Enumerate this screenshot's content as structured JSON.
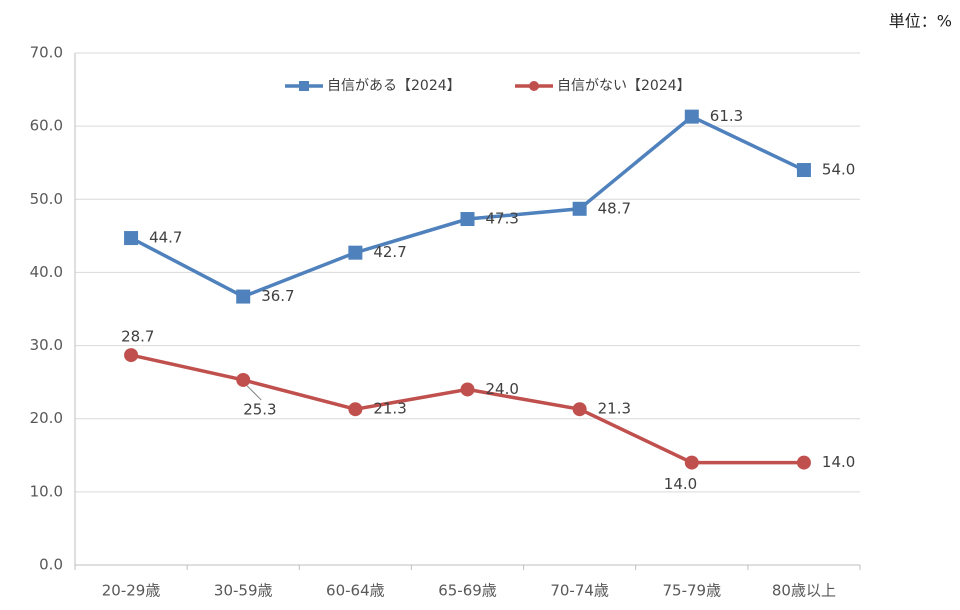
{
  "chart_data": {
    "type": "line",
    "unit": "単位：%",
    "categories": [
      "20-29歳",
      "30-59歳",
      "60-64歳",
      "65-69歳",
      "70-74歳",
      "75-79歳",
      "80歳以上"
    ],
    "series": [
      {
        "name": "自信がある【2024】",
        "color": "#4f81bd",
        "marker": "square",
        "values": [
          44.7,
          36.7,
          42.7,
          47.3,
          48.7,
          61.3,
          54.0
        ],
        "value_labels": [
          "44.7",
          "36.7",
          "42.7",
          "47.3",
          "48.7",
          "61.3",
          "54.0"
        ]
      },
      {
        "name": "自信がない【2024】",
        "color": "#c0504d",
        "marker": "circle",
        "values": [
          28.7,
          25.3,
          21.3,
          24.0,
          21.3,
          14.0,
          14.0
        ],
        "value_labels": [
          "28.7",
          "25.3",
          "21.3",
          "24.0",
          "21.3",
          "14.0",
          "14.0"
        ]
      }
    ],
    "ylim": [
      0,
      70
    ],
    "yticks": [
      {
        "value": 0,
        "label": "0.0"
      },
      {
        "value": 10,
        "label": "10.0"
      },
      {
        "value": 20,
        "label": "20.0"
      },
      {
        "value": 30,
        "label": "30.0"
      },
      {
        "value": 40,
        "label": "40.0"
      },
      {
        "value": 50,
        "label": "50.0"
      },
      {
        "value": 60,
        "label": "60.0"
      },
      {
        "value": 70,
        "label": "70.0"
      }
    ],
    "grid": true
  }
}
